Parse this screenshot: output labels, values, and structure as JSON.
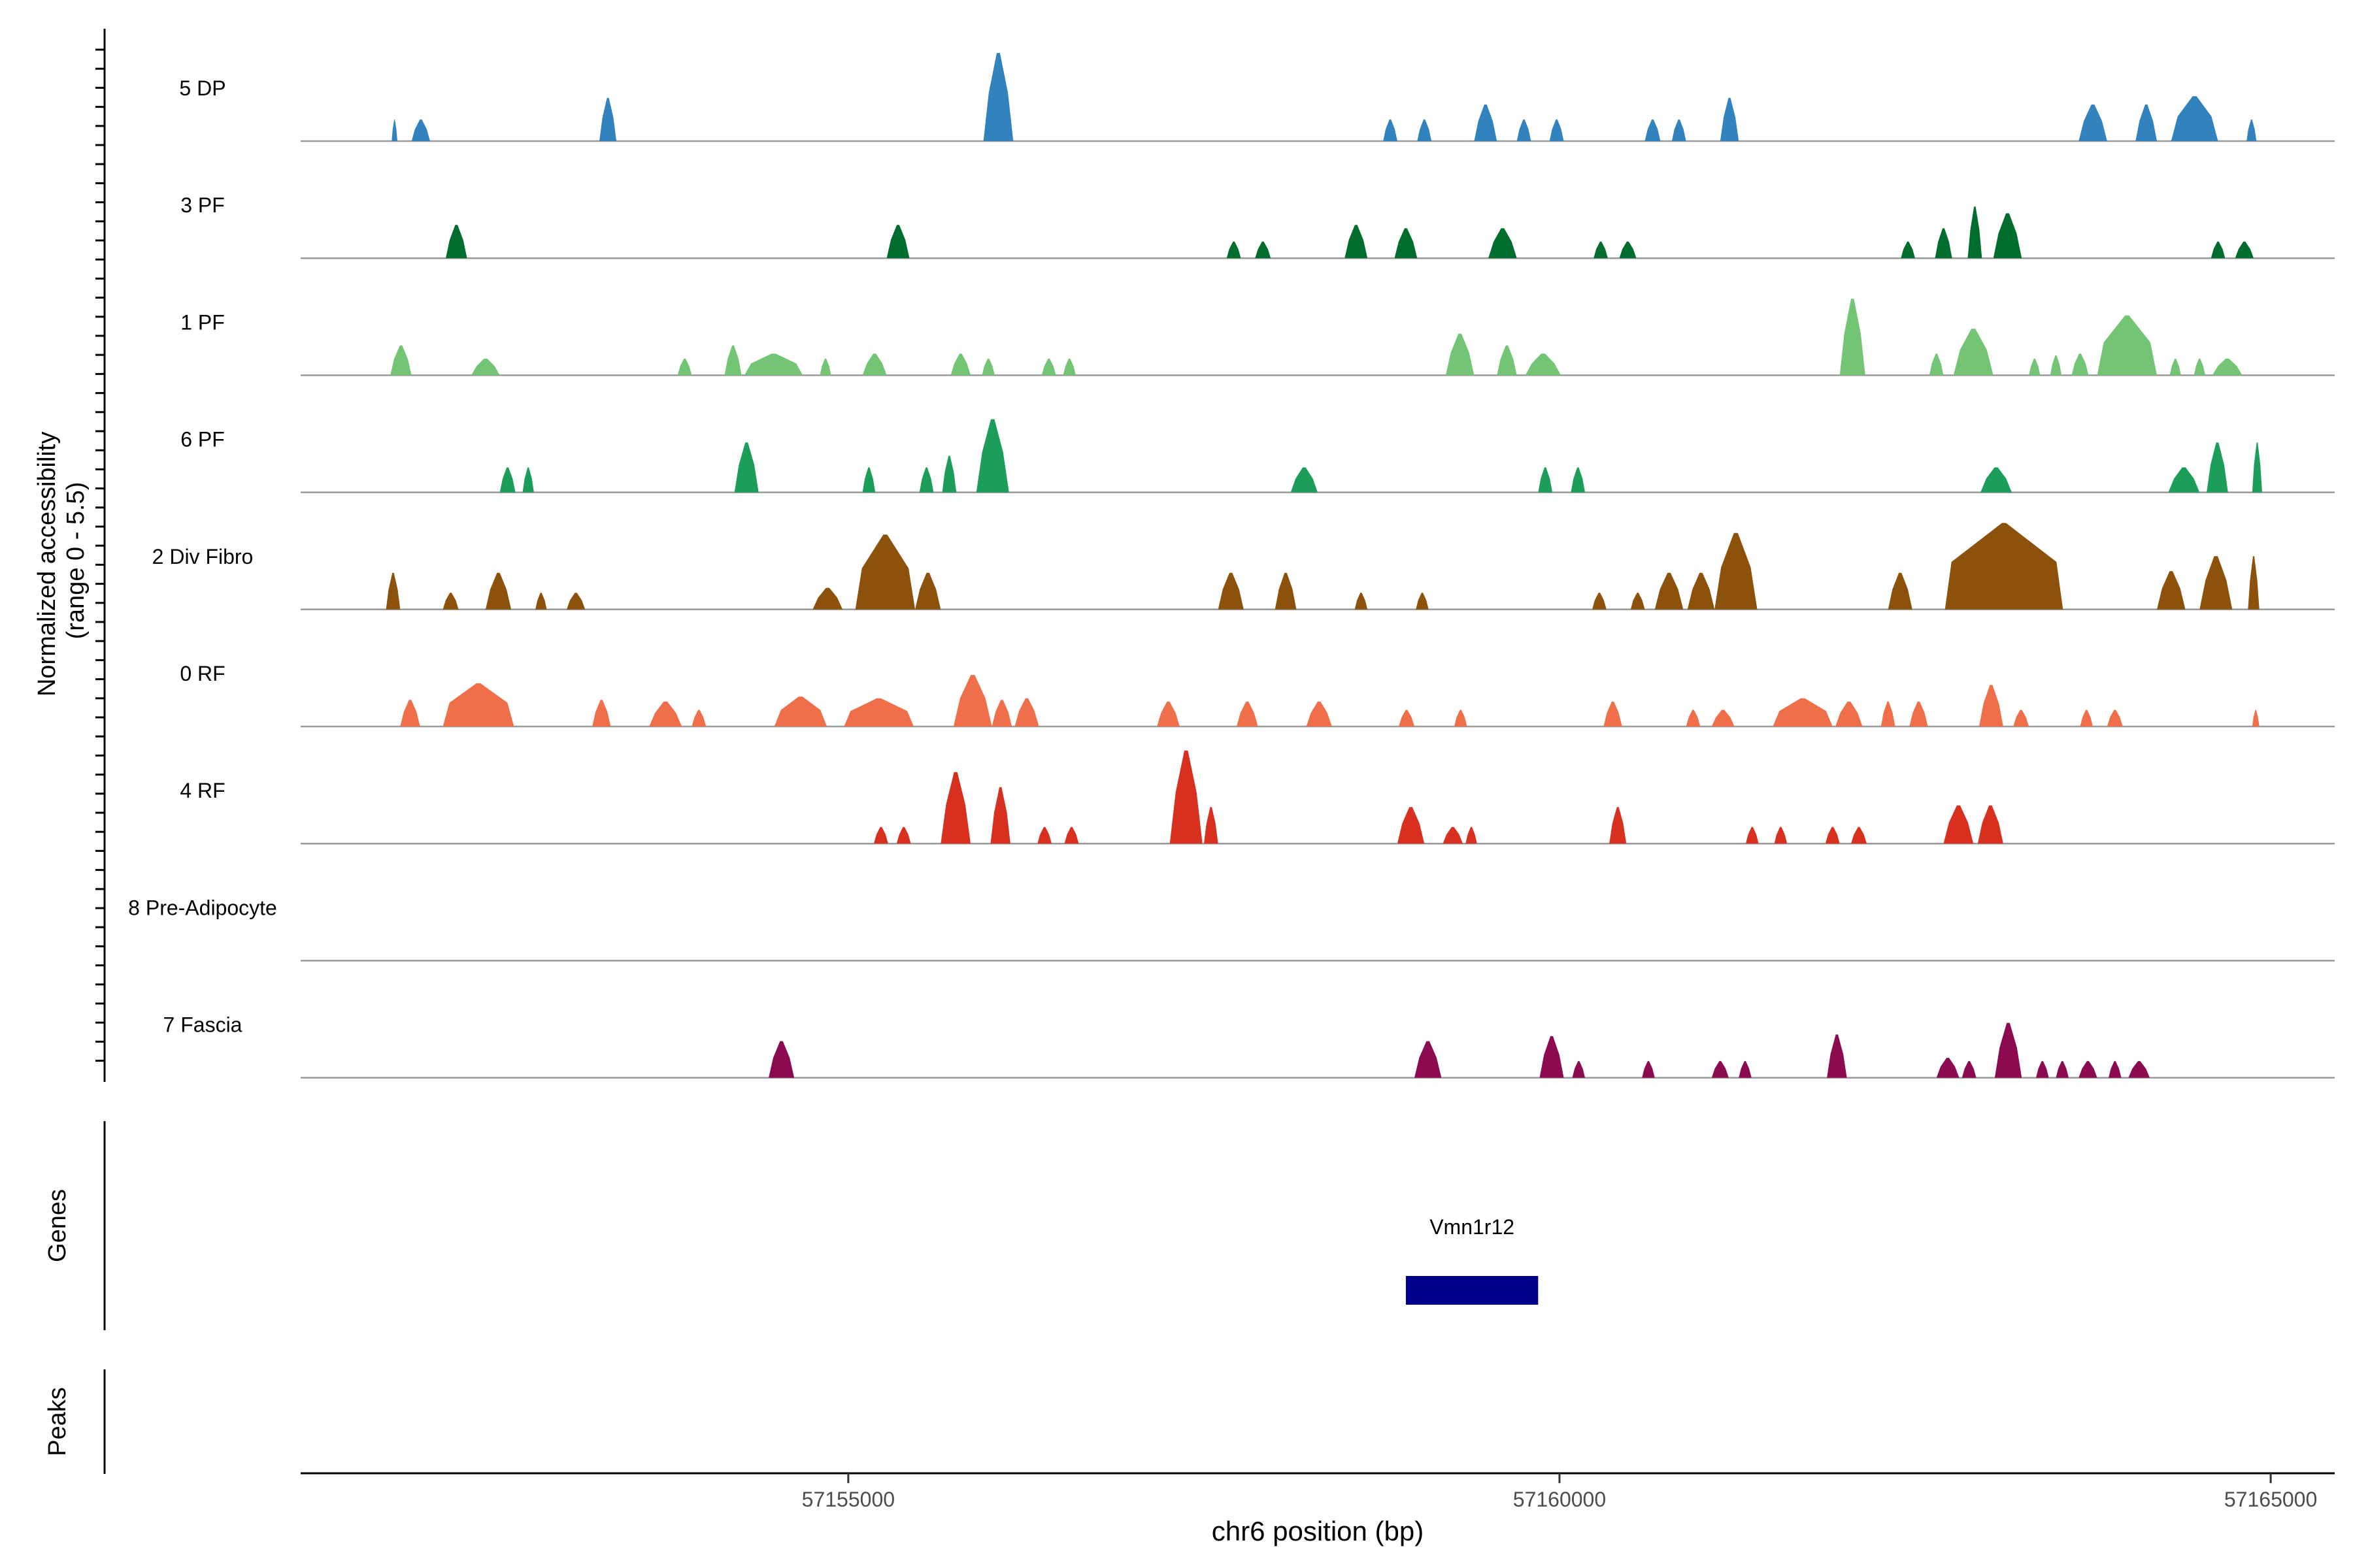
{
  "chart_data": {
    "type": "area",
    "title": "",
    "xlabel": "chr6 position (bp)",
    "ylabel_line1": "Normalized accessibility",
    "ylabel_line2": "(range 0 - 5.5)",
    "ylim": [
      0,
      5.5
    ],
    "xlim": [
      57151150,
      57165450
    ],
    "x_ticks": [
      {
        "value": 57155000,
        "label": "57155000"
      },
      {
        "value": 57160000,
        "label": "57160000"
      },
      {
        "value": 57165000,
        "label": "57165000"
      }
    ],
    "panel_labels": {
      "genes": "Genes",
      "peaks": "Peaks"
    },
    "series": [
      {
        "name": "5 DP",
        "color": "#3182BD",
        "peaks": [
          [
            57151790,
            57151830,
            1.3
          ],
          [
            57151930,
            57152060,
            1.3
          ],
          [
            57153250,
            57153370,
            2.6
          ],
          [
            57155950,
            57156160,
            5.3
          ],
          [
            57158760,
            57158860,
            1.3
          ],
          [
            57159000,
            57159100,
            1.3
          ],
          [
            57159400,
            57159560,
            2.2
          ],
          [
            57159700,
            57159800,
            1.3
          ],
          [
            57159930,
            57160030,
            1.3
          ],
          [
            57160600,
            57160710,
            1.3
          ],
          [
            57160790,
            57160890,
            1.3
          ],
          [
            57161130,
            57161260,
            2.6
          ],
          [
            57163650,
            57163850,
            2.2
          ],
          [
            57164050,
            57164200,
            2.2
          ],
          [
            57164300,
            57164630,
            2.7
          ],
          [
            57164830,
            57164900,
            1.3
          ]
        ]
      },
      {
        "name": "3 PF",
        "color": "#006D2C",
        "peaks": [
          [
            57152170,
            57152320,
            2.0
          ],
          [
            57155270,
            57155430,
            2.0
          ],
          [
            57157660,
            57157760,
            1.0
          ],
          [
            57157860,
            57157970,
            1.0
          ],
          [
            57158490,
            57158650,
            2.0
          ],
          [
            57158840,
            57159000,
            1.8
          ],
          [
            57159500,
            57159700,
            1.8
          ],
          [
            57160240,
            57160340,
            1.0
          ],
          [
            57160420,
            57160540,
            1.0
          ],
          [
            57162400,
            57162500,
            1.0
          ],
          [
            57162640,
            57162760,
            1.8
          ],
          [
            57162870,
            57162970,
            3.1
          ],
          [
            57163050,
            57163250,
            2.7
          ],
          [
            57164580,
            57164680,
            1.0
          ],
          [
            57164750,
            57164880,
            1.0
          ]
        ]
      },
      {
        "name": "1 PF",
        "color": "#74C476",
        "peaks": [
          [
            57151780,
            57151930,
            1.8
          ],
          [
            57152350,
            57152550,
            1.0
          ],
          [
            57153800,
            57153900,
            1.0
          ],
          [
            57154130,
            57154250,
            1.8
          ],
          [
            57154270,
            57154680,
            1.3
          ],
          [
            57154800,
            57154880,
            1.0
          ],
          [
            57155100,
            57155270,
            1.3
          ],
          [
            57155720,
            57155860,
            1.3
          ],
          [
            57155940,
            57156030,
            1.0
          ],
          [
            57156360,
            57156460,
            1.0
          ],
          [
            57156510,
            57156600,
            1.0
          ],
          [
            57159200,
            57159400,
            2.5
          ],
          [
            57159560,
            57159700,
            1.8
          ],
          [
            57159760,
            57160010,
            1.3
          ],
          [
            57161970,
            57162150,
            4.6
          ],
          [
            57162600,
            57162700,
            1.3
          ],
          [
            57162770,
            57163050,
            2.8
          ],
          [
            57163300,
            57163380,
            1.0
          ],
          [
            57163450,
            57163530,
            1.2
          ],
          [
            57163600,
            57163720,
            1.3
          ],
          [
            57163780,
            57164200,
            3.6
          ],
          [
            57164290,
            57164370,
            1.0
          ],
          [
            57164460,
            57164540,
            1.0
          ],
          [
            57164590,
            57164800,
            1.0
          ]
        ]
      },
      {
        "name": "6 PF",
        "color": "#1C9E5A",
        "peaks": [
          [
            57152550,
            57152660,
            1.5
          ],
          [
            57152710,
            57152790,
            1.5
          ],
          [
            57154200,
            57154370,
            3.0
          ],
          [
            57155100,
            57155190,
            1.5
          ],
          [
            57155500,
            57155600,
            1.5
          ],
          [
            57155660,
            57155760,
            2.2
          ],
          [
            57155900,
            57156130,
            4.4
          ],
          [
            57158110,
            57158300,
            1.5
          ],
          [
            57159850,
            57159950,
            1.5
          ],
          [
            57160080,
            57160180,
            1.5
          ],
          [
            57162960,
            57163180,
            1.5
          ],
          [
            57164280,
            57164500,
            1.5
          ],
          [
            57164550,
            57164700,
            3.0
          ],
          [
            57164870,
            57164940,
            3.0
          ]
        ]
      },
      {
        "name": "2 Div Fibro",
        "color": "#8C510A",
        "peaks": [
          [
            57151750,
            57151850,
            2.2
          ],
          [
            57152150,
            57152260,
            1.0
          ],
          [
            57152450,
            57152630,
            2.2
          ],
          [
            57152800,
            57152880,
            1.0
          ],
          [
            57153020,
            57153150,
            1.0
          ],
          [
            57154750,
            57154960,
            1.3
          ],
          [
            57155050,
            57155470,
            4.5
          ],
          [
            57155470,
            57155650,
            2.2
          ],
          [
            57157600,
            57157780,
            2.2
          ],
          [
            57158000,
            57158150,
            2.2
          ],
          [
            57158560,
            57158650,
            1.0
          ],
          [
            57158990,
            57159080,
            1.0
          ],
          [
            57160230,
            57160330,
            1.0
          ],
          [
            57160500,
            57160600,
            1.0
          ],
          [
            57160670,
            57160870,
            2.2
          ],
          [
            57160900,
            57161090,
            2.2
          ],
          [
            57161090,
            57161390,
            4.6
          ],
          [
            57162310,
            57162480,
            2.2
          ],
          [
            57162710,
            57163540,
            5.2
          ],
          [
            57164200,
            57164400,
            2.3
          ],
          [
            57164500,
            57164730,
            3.2
          ],
          [
            57164840,
            57164920,
            3.2
          ]
        ]
      },
      {
        "name": "0 RF",
        "color": "#EF6F4A",
        "peaks": [
          [
            57151850,
            57151990,
            1.6
          ],
          [
            57152150,
            57152650,
            2.6
          ],
          [
            57153200,
            57153330,
            1.6
          ],
          [
            57153600,
            57153830,
            1.5
          ],
          [
            57153900,
            57154000,
            1.0
          ],
          [
            57154480,
            57154850,
            1.8
          ],
          [
            57154970,
            57155460,
            1.7
          ],
          [
            57155740,
            57156010,
            3.1
          ],
          [
            57156010,
            57156150,
            1.6
          ],
          [
            57156170,
            57156340,
            1.7
          ],
          [
            57157170,
            57157330,
            1.5
          ],
          [
            57157730,
            57157880,
            1.5
          ],
          [
            57158220,
            57158400,
            1.5
          ],
          [
            57158870,
            57158980,
            1.0
          ],
          [
            57159260,
            57159350,
            1.0
          ],
          [
            57160310,
            57160440,
            1.5
          ],
          [
            57160890,
            57160990,
            1.0
          ],
          [
            57161070,
            57161230,
            1.0
          ],
          [
            57161500,
            57161920,
            1.7
          ],
          [
            57161940,
            57162130,
            1.5
          ],
          [
            57162260,
            57162360,
            1.5
          ],
          [
            57162460,
            57162590,
            1.5
          ],
          [
            57162950,
            57163120,
            2.5
          ],
          [
            57163190,
            57163300,
            1.0
          ],
          [
            57163660,
            57163750,
            1.0
          ],
          [
            57163850,
            57163960,
            1.0
          ],
          [
            57164870,
            57164920,
            1.0
          ]
        ]
      },
      {
        "name": "4 RF",
        "color": "#D7301F",
        "peaks": [
          [
            57155180,
            57155280,
            1.0
          ],
          [
            57155340,
            57155440,
            1.0
          ],
          [
            57155650,
            57155860,
            4.3
          ],
          [
            57156000,
            57156140,
            3.4
          ],
          [
            57156330,
            57156430,
            1.0
          ],
          [
            57156520,
            57156620,
            1.0
          ],
          [
            57157260,
            57157490,
            5.6
          ],
          [
            57157500,
            57157600,
            2.2
          ],
          [
            57158860,
            57159050,
            2.2
          ],
          [
            57159180,
            57159320,
            1.0
          ],
          [
            57159340,
            57159420,
            1.0
          ],
          [
            57160350,
            57160470,
            2.2
          ],
          [
            57161310,
            57161400,
            1.0
          ],
          [
            57161510,
            57161600,
            1.0
          ],
          [
            57161870,
            57161970,
            1.0
          ],
          [
            57162050,
            57162160,
            1.0
          ],
          [
            57162700,
            57162910,
            2.3
          ],
          [
            57162940,
            57163120,
            2.3
          ]
        ]
      },
      {
        "name": "8 Pre-Adipocyte",
        "color": "#7A7A7A",
        "peaks": []
      },
      {
        "name": "7 Fascia",
        "color": "#8B0A50",
        "peaks": [
          [
            57154440,
            57154620,
            2.2
          ],
          [
            57158980,
            57159170,
            2.2
          ],
          [
            57159860,
            57160030,
            2.5
          ],
          [
            57160090,
            57160180,
            1.0
          ],
          [
            57160580,
            57160670,
            1.0
          ],
          [
            57161070,
            57161190,
            1.0
          ],
          [
            57161260,
            57161350,
            1.0
          ],
          [
            57161880,
            57162020,
            2.6
          ],
          [
            57162650,
            57162810,
            1.2
          ],
          [
            57162830,
            57162930,
            1.0
          ],
          [
            57163060,
            57163250,
            3.3
          ],
          [
            57163350,
            57163440,
            1.0
          ],
          [
            57163490,
            57163580,
            1.0
          ],
          [
            57163650,
            57163780,
            1.0
          ],
          [
            57163860,
            57163950,
            1.0
          ],
          [
            57164000,
            57164150,
            1.0
          ]
        ]
      }
    ],
    "genes": [
      {
        "name": "Vmn1r12",
        "start": 57158920,
        "end": 57159850,
        "color": "#00008B"
      }
    ],
    "peaks_track": []
  }
}
